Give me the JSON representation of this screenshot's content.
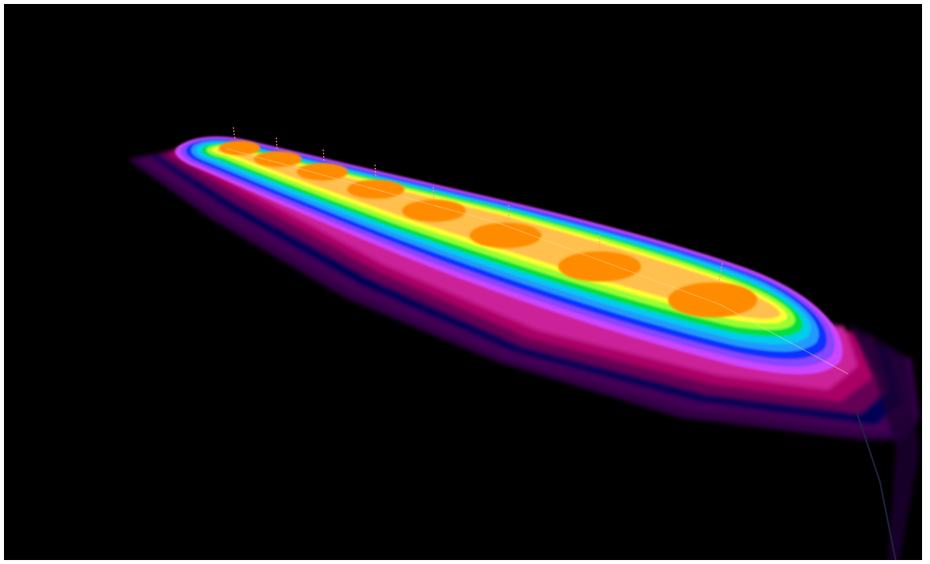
{
  "scene": {
    "description_visible": false,
    "background_color": "#000000",
    "frame_color": "#ffffff",
    "false_color_palette": [
      "#ff8c00",
      "#ffc04d",
      "#ffff33",
      "#99ff33",
      "#00e040",
      "#00ccee",
      "#2299ff",
      "#1133ff",
      "#8844ff",
      "#cc44ff",
      "#cc2299",
      "#aa0066",
      "#660055",
      "#000055",
      "#330044"
    ],
    "luminaire_count": 8
  }
}
